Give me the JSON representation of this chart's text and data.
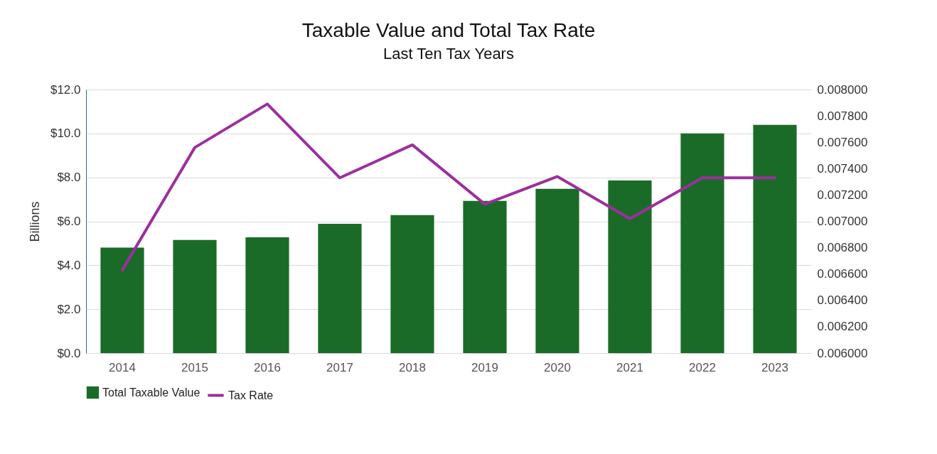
{
  "chart_data": {
    "type": "bar",
    "title": "Taxable Value and Total Tax Rate",
    "subtitle": "Last Ten Tax Years",
    "ylabel": "Billions",
    "categories": [
      "2014",
      "2015",
      "2016",
      "2017",
      "2018",
      "2019",
      "2020",
      "2021",
      "2022",
      "2023"
    ],
    "series": [
      {
        "name": "Total Taxable Value",
        "color": "#1b6b28",
        "values": [
          4.8,
          5.15,
          5.27,
          5.89,
          6.28,
          6.93,
          7.48,
          7.86,
          10.0,
          10.39
        ]
      },
      {
        "name": "Tax Rate",
        "type": "line",
        "axis": "y2",
        "color": "#9c2f9e",
        "values": [
          0.00663,
          0.00756,
          0.00789,
          0.00733,
          0.00758,
          0.00713,
          0.00734,
          0.00702,
          0.00733,
          0.00733
        ]
      }
    ],
    "ylim": [
      0,
      12
    ],
    "yticks": [
      {
        "value": 0,
        "label": "$0.0"
      },
      {
        "value": 2,
        "label": "$2.0"
      },
      {
        "value": 4,
        "label": "$4.0"
      },
      {
        "value": 6,
        "label": "$6.0"
      },
      {
        "value": 8,
        "label": "$8.0"
      },
      {
        "value": 10,
        "label": "$10.0"
      },
      {
        "value": 12,
        "label": "$12.0"
      }
    ],
    "y2lim": [
      0.006,
      0.008
    ],
    "y2ticks": [
      {
        "value": 0.006,
        "label": "0.006000"
      },
      {
        "value": 0.0062,
        "label": "0.006200"
      },
      {
        "value": 0.0064,
        "label": "0.006400"
      },
      {
        "value": 0.0066,
        "label": "0.006600"
      },
      {
        "value": 0.0068,
        "label": "0.006800"
      },
      {
        "value": 0.007,
        "label": "0.007000"
      },
      {
        "value": 0.0072,
        "label": "0.007200"
      },
      {
        "value": 0.0074,
        "label": "0.007400"
      },
      {
        "value": 0.0076,
        "label": "0.007600"
      },
      {
        "value": 0.0078,
        "label": "0.007800"
      },
      {
        "value": 0.008,
        "label": "0.008000"
      }
    ],
    "grid": "y",
    "legend": "bottom",
    "marker": "none",
    "line_style": "solid"
  }
}
